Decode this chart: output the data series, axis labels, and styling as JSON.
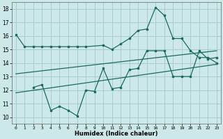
{
  "xlabel": "Humidex (Indice chaleur)",
  "bg_color": "#cce8e8",
  "grid_color": "#a8cccc",
  "line_color": "#1a6b5c",
  "xlim": [
    -0.5,
    23.5
  ],
  "ylim": [
    9.5,
    18.5
  ],
  "yticks": [
    10,
    11,
    12,
    13,
    14,
    15,
    16,
    17,
    18
  ],
  "xticks": [
    0,
    1,
    2,
    3,
    4,
    5,
    6,
    7,
    8,
    9,
    10,
    11,
    12,
    13,
    14,
    15,
    16,
    17,
    18,
    19,
    20,
    21,
    22,
    23
  ],
  "line1_x": [
    0,
    1,
    2,
    3,
    4,
    5,
    6,
    7,
    8,
    10,
    11,
    12,
    13,
    14,
    15,
    16,
    17,
    18,
    19,
    20,
    21,
    22,
    23
  ],
  "line1_y": [
    16.1,
    15.2,
    15.2,
    15.2,
    15.2,
    15.2,
    15.2,
    15.2,
    15.2,
    15.3,
    15.0,
    15.4,
    15.8,
    16.4,
    16.5,
    18.1,
    17.5,
    15.8,
    15.8,
    14.9,
    14.4,
    14.4,
    14.0
  ],
  "line2_x": [
    2,
    3,
    4,
    5,
    6,
    7,
    8,
    9,
    10,
    11,
    12,
    13,
    14,
    15,
    16,
    17,
    18,
    19,
    20,
    21,
    22,
    23
  ],
  "line2_y": [
    12.2,
    12.4,
    10.5,
    10.8,
    10.5,
    10.1,
    12.0,
    11.9,
    13.6,
    12.1,
    12.2,
    13.5,
    13.6,
    14.9,
    14.9,
    14.9,
    13.0,
    13.0,
    13.0,
    14.9,
    14.3,
    14.4
  ],
  "line3_x": [
    0,
    23
  ],
  "line3_y": [
    11.8,
    13.9
  ],
  "line4_x": [
    0,
    23
  ],
  "line4_y": [
    13.2,
    14.9
  ]
}
